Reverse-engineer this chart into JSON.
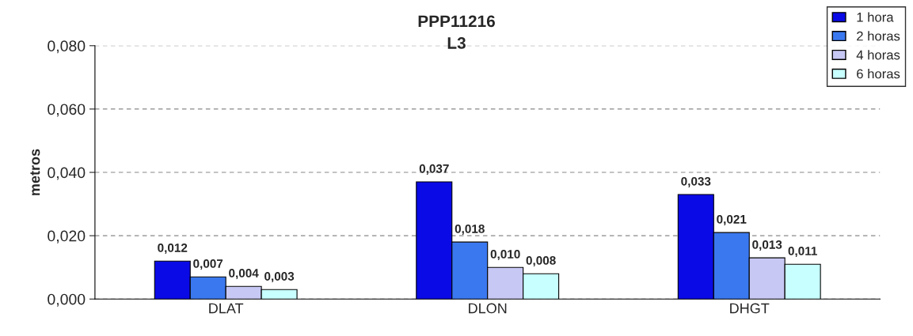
{
  "chart_data": {
    "type": "bar",
    "title": "PPP11216",
    "subtitle": "L3",
    "ylabel": "metros",
    "categories": [
      "DLAT",
      "DLON",
      "DHGT"
    ],
    "series": [
      {
        "name": "1 hora",
        "color": "#0a0ae6",
        "values": [
          0.012,
          0.037,
          0.033
        ],
        "value_labels": [
          "0,012",
          "0,037",
          "0,033"
        ]
      },
      {
        "name": "2 horas",
        "color": "#3a78f0",
        "values": [
          0.007,
          0.018,
          0.021
        ],
        "value_labels": [
          "0,007",
          "0,018",
          "0,021"
        ]
      },
      {
        "name": "4 horas",
        "color": "#c8c8f5",
        "values": [
          0.004,
          0.01,
          0.013
        ],
        "value_labels": [
          "0,004",
          "0,010",
          "0,013"
        ]
      },
      {
        "name": "6 horas",
        "color": "#c8ffff",
        "values": [
          0.003,
          0.008,
          0.011
        ],
        "value_labels": [
          "0,003",
          "0,008",
          "0,011"
        ]
      }
    ],
    "ylim": [
      0,
      0.08
    ],
    "yticks": [
      {
        "value": 0,
        "label": "0,000"
      },
      {
        "value": 0.02,
        "label": "0,020"
      },
      {
        "value": 0.04,
        "label": "0,040"
      },
      {
        "value": 0.06,
        "label": "0,060"
      },
      {
        "value": 0.08,
        "label": "0,080"
      }
    ],
    "grid": "y",
    "legend": "top right"
  }
}
